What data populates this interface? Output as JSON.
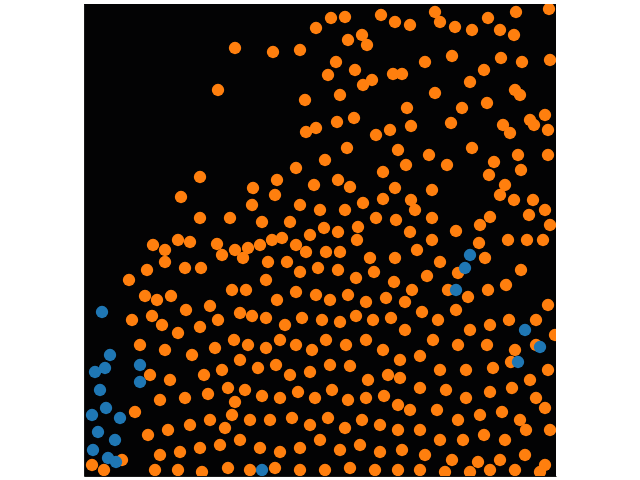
{
  "chart_data": {
    "type": "scatter",
    "xlim": [
      84,
      556
    ],
    "ylim": [
      476,
      4
    ],
    "tick_labels": false,
    "series": [
      {
        "color": "#ff7f0e",
        "marker": "circle",
        "x": [
          235,
          273,
          300,
          316,
          331,
          345,
          348,
          362,
          367,
          381,
          395,
          410,
          435,
          440,
          455,
          472,
          488,
          500,
          514,
          516,
          549,
          336,
          328,
          355,
          372,
          393,
          402,
          425,
          452,
          470,
          484,
          501,
          522,
          550,
          218,
          305,
          340,
          363,
          407,
          435,
          462,
          487,
          515,
          520,
          530,
          545,
          548,
          306,
          316,
          337,
          354,
          390,
          411,
          451,
          503,
          534,
          510,
          325,
          347,
          376,
          398,
          406,
          429,
          447,
          472,
          494,
          518,
          521,
          548,
          200,
          277,
          296,
          314,
          338,
          350,
          383,
          395,
          411,
          432,
          489,
          505,
          514,
          533,
          545,
          181,
          253,
          252,
          275,
          300,
          320,
          345,
          363,
          383,
          415,
          432,
          500,
          529,
          550,
          543,
          527,
          508,
          490,
          480,
          200,
          230,
          262,
          290,
          310,
          324,
          338,
          358,
          376,
          396,
          410,
          432,
          456,
          479,
          521,
          153,
          165,
          178,
          190,
          217,
          235,
          248,
          260,
          272,
          282,
          296,
          306,
          326,
          340,
          357,
          370,
          395,
          417,
          440,
          458,
          485,
          129,
          147,
          165,
          185,
          201,
          222,
          243,
          268,
          287,
          300,
          318,
          338,
          356,
          374,
          394,
          412,
          427,
          448,
          468,
          488,
          506,
          145,
          157,
          171,
          186,
          210,
          232,
          246,
          266,
          277,
          296,
          316,
          330,
          348,
          366,
          386,
          405,
          422,
          438,
          456,
          470,
          490,
          509,
          536,
          548,
          132,
          152,
          162,
          178,
          200,
          218,
          240,
          252,
          266,
          285,
          302,
          322,
          340,
          356,
          373,
          391,
          405,
          433,
          458,
          487,
          515,
          536,
          555,
          140,
          165,
          192,
          215,
          234,
          248,
          266,
          280,
          296,
          312,
          326,
          346,
          366,
          383,
          400,
          420,
          440,
          466,
          493,
          511,
          530,
          548,
          150,
          170,
          204,
          222,
          240,
          258,
          276,
          290,
          310,
          330,
          350,
          368,
          388,
          400,
          420,
          446,
          466,
          490,
          512,
          536,
          135,
          160,
          185,
          208,
          228,
          245,
          262,
          280,
          298,
          315,
          332,
          348,
          366,
          384,
          398,
          410,
          437,
          458,
          480,
          502,
          520,
          545,
          148,
          168,
          190,
          210,
          232,
          250,
          270,
          292,
          310,
          328,
          345,
          362,
          380,
          398,
          420,
          440,
          463,
          484,
          505,
          526,
          550,
          160,
          180,
          200,
          220,
          240,
          260,
          280,
          300,
          320,
          340,
          360,
          380,
          402,
          425,
          452,
          478,
          500,
          525,
          545,
          155,
          178,
          202,
          228,
          250,
          275,
          300,
          325,
          350,
          375,
          398,
          420,
          445,
          470,
          490,
          515,
          540,
          92,
          104,
          122,
          225,
          235
        ],
        "values": [
          48,
          52,
          50,
          28,
          18,
          17,
          40,
          35,
          45,
          15,
          22,
          25,
          12,
          22,
          27,
          30,
          18,
          30,
          35,
          12,
          9,
          62,
          75,
          70,
          80,
          74,
          74,
          62,
          56,
          82,
          70,
          58,
          62,
          60,
          90,
          100,
          95,
          85,
          108,
          93,
          108,
          103,
          90,
          95,
          120,
          115,
          130,
          132,
          128,
          122,
          118,
          130,
          126,
          123,
          125,
          125,
          133,
          160,
          148,
          135,
          150,
          165,
          155,
          165,
          148,
          162,
          155,
          170,
          155,
          177,
          180,
          168,
          185,
          180,
          187,
          172,
          188,
          200,
          190,
          175,
          185,
          200,
          200,
          210,
          197,
          188,
          205,
          195,
          205,
          210,
          210,
          203,
          199,
          210,
          218,
          195,
          215,
          225,
          240,
          240,
          240,
          217,
          225,
          218,
          218,
          222,
          222,
          235,
          228,
          232,
          227,
          218,
          220,
          232,
          240,
          231,
          243,
          270,
          245,
          250,
          240,
          242,
          244,
          250,
          248,
          245,
          240,
          238,
          245,
          252,
          252,
          252,
          240,
          258,
          258,
          250,
          262,
          273,
          258,
          280,
          270,
          262,
          268,
          268,
          255,
          258,
          262,
          262,
          272,
          268,
          270,
          278,
          272,
          282,
          290,
          276,
          290,
          297,
          290,
          285,
          296,
          300,
          296,
          310,
          306,
          290,
          290,
          280,
          300,
          292,
          295,
          300,
          295,
          302,
          298,
          302,
          312,
          320,
          310,
          330,
          325,
          320,
          320,
          305,
          320,
          316,
          325,
          333,
          327,
          320,
          313,
          316,
          318,
          325,
          318,
          320,
          322,
          316,
          320,
          318,
          330,
          340,
          345,
          345,
          350,
          345,
          335,
          345,
          350,
          355,
          348,
          340,
          345,
          348,
          340,
          345,
          350,
          340,
          345,
          340,
          350,
          360,
          356,
          370,
          370,
          368,
          362,
          380,
          370,
          375,
          380,
          375,
          370,
          360,
          368,
          365,
          375,
          372,
          365,
          366,
          380,
          375,
          378,
          388,
          390,
          398,
          392,
          388,
          398,
          412,
          400,
          398,
          394,
          388,
          390,
          396,
          398,
          392,
          398,
          390,
          400,
          398,
          396,
          405,
          410,
          410,
          420,
          415,
          412,
          420,
          408,
          435,
          430,
          425,
          420,
          415,
          420,
          420,
          418,
          425,
          418,
          428,
          420,
          425,
          430,
          430,
          440,
          440,
          435,
          440,
          430,
          430,
          455,
          452,
          448,
          445,
          440,
          448,
          452,
          448,
          440,
          450,
          445,
          452,
          450,
          455,
          460,
          462,
          460,
          455,
          465,
          470,
          470,
          472,
          468,
          470,
          468,
          470,
          470,
          468,
          470,
          470,
          470,
          472,
          472,
          470,
          470,
          472,
          465,
          470,
          460,
          428,
          402
        ]
      },
      {
        "color": "#1f77b4",
        "marker": "circle",
        "x": [
          102,
          110,
          95,
          105,
          140,
          140,
          100,
          106,
          92,
          120,
          98,
          115,
          93,
          108,
          116,
          470,
          465,
          456,
          525,
          540,
          518,
          262
        ],
        "values": [
          312,
          355,
          372,
          368,
          365,
          382,
          390,
          408,
          415,
          418,
          432,
          440,
          450,
          458,
          462,
          255,
          268,
          290,
          330,
          347,
          362,
          470
        ]
      }
    ]
  }
}
